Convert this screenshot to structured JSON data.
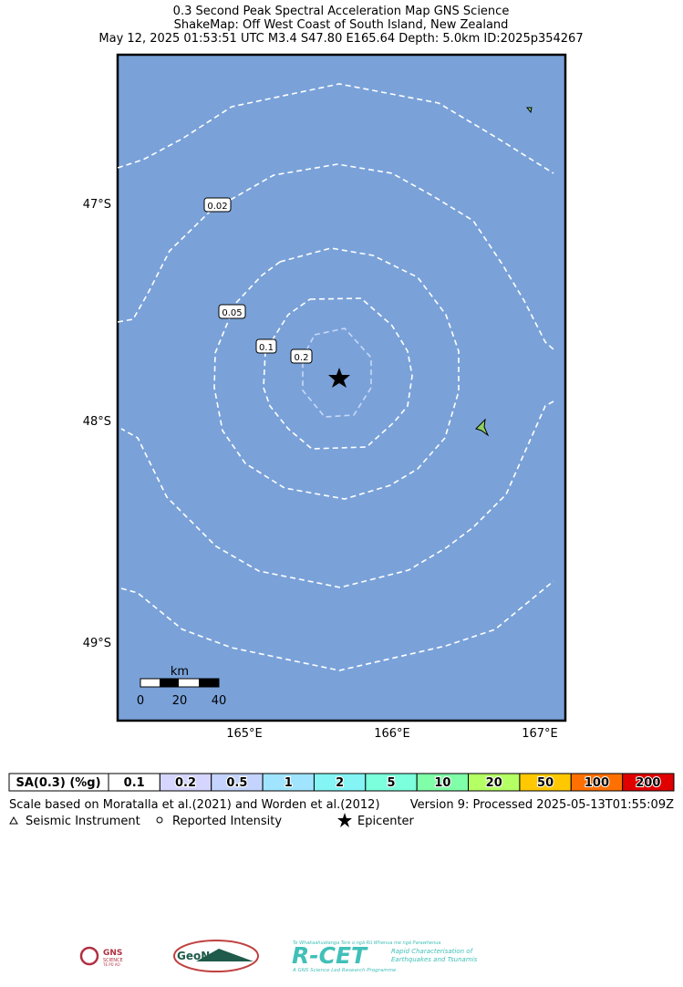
{
  "header": {
    "title": "0.3 Second Peak Spectral Acceleration Map GNS Science",
    "subtitle": "ShakeMap: Off West Coast of South Island, New Zealand",
    "event": "May 12, 2025 01:53:51 UTC M3.4 S47.80 E165.64 Depth: 5.0km ID:2025p354267"
  },
  "map": {
    "lat_labels": [
      "47°S",
      "48°S",
      "49°S"
    ],
    "lon_labels": [
      "165°E",
      "166°E",
      "167°E"
    ],
    "contour_labels": [
      "0.02",
      "0.05",
      "0.1",
      "0.2"
    ],
    "scale_bar": {
      "unit": "km",
      "ticks": [
        "0",
        "20",
        "40"
      ]
    }
  },
  "colorbar": {
    "title": "SA(0.3) (%g)",
    "cells": [
      {
        "label": "0.1",
        "color": "#ffffff"
      },
      {
        "label": "0.2",
        "color": "#d5d5ff"
      },
      {
        "label": "0.5",
        "color": "#c4d4ff"
      },
      {
        "label": "1",
        "color": "#a0e4ff"
      },
      {
        "label": "2",
        "color": "#84f4f4"
      },
      {
        "label": "5",
        "color": "#7cffdc"
      },
      {
        "label": "10",
        "color": "#80ffa8"
      },
      {
        "label": "20",
        "color": "#b4ff64"
      },
      {
        "label": "50",
        "color": "#ffc800"
      },
      {
        "label": "100",
        "color": "#ff7000"
      },
      {
        "label": "200",
        "color": "#e00000"
      }
    ]
  },
  "footer": {
    "scale_note": "Scale based on Moratalla et al.(2021) and Worden et al.(2012)",
    "version": "Version 9: Processed 2025-05-13T01:55:09Z"
  },
  "legend": {
    "instrument": "Seismic Instrument",
    "intensity": "Reported Intensity",
    "epicenter": "Epicenter"
  },
  "logos": {
    "gns": "GNS",
    "gns_sub": "SCIENCE",
    "gns_maori": "TE PŪ AO",
    "geonet": "GeoNet",
    "rcet": "R-CET",
    "rcet_maori": "Te Whakaahuatanga Tere o ngā Rū Whenua me ngā Parawhenua",
    "rcet_line1": "Rapid Characterisation of",
    "rcet_line2": "Earthquakes and Tsunamis",
    "rcet_sub": "A GNS Science Led Research Programme"
  }
}
